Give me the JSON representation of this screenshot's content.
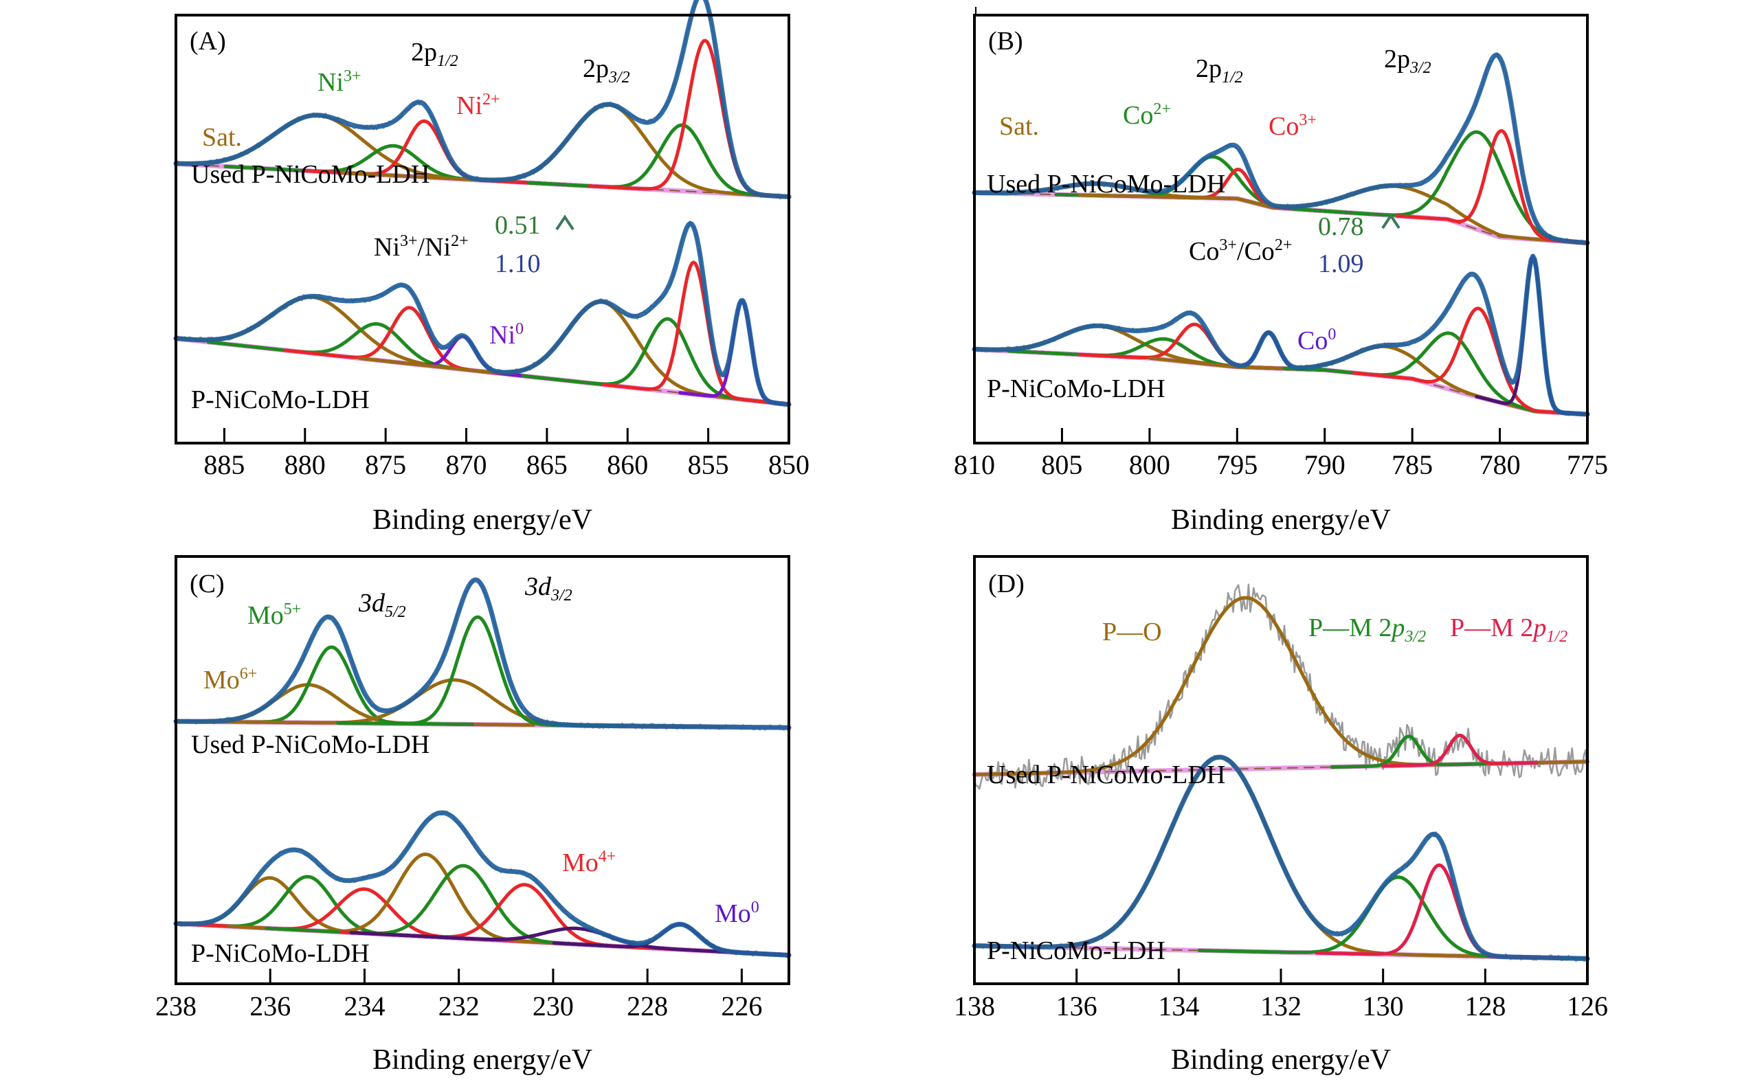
{
  "colors": {
    "raw": "#9a9a9a",
    "envelope": "#1f5f9e",
    "satellite": "#9a6a12",
    "green": "#1f8a1f",
    "red": "#e8262a",
    "purple": "#7a16c8",
    "darkpurple": "#4b1470",
    "background_line": "#e79ce8",
    "crimson": "#e0204a",
    "ratio_new": "#2e7d32",
    "ratio_old": "#2a3f96",
    "arrow": "#3b7a5a"
  },
  "chart_data": [
    {
      "type": "line",
      "panel_label": "(A)",
      "title": "Ni 2p",
      "xlabel": "Binding energy/eV",
      "ylabel": "",
      "xlim": [
        888,
        850
      ],
      "xticks": [
        885,
        880,
        875,
        870,
        865,
        860,
        855,
        850
      ],
      "annotations": {
        "spin_orbit": [
          {
            "text": "2p",
            "sub": "1/2",
            "x": 872.5
          },
          {
            "text": "2p",
            "sub": "3/2",
            "x": 861
          }
        ],
        "species": [
          {
            "text": "Sat.",
            "sup": "",
            "color": "satellite"
          },
          {
            "text": "Ni",
            "sup": "3+",
            "color": "green"
          },
          {
            "text": "Ni",
            "sup": "2+",
            "color": "red"
          },
          {
            "text": "Ni",
            "sup": "0",
            "color": "purple"
          }
        ],
        "ratio": {
          "label": "Ni",
          "label_sup": "3+",
          "label2": "/Ni",
          "label2_sup": "2+",
          "used": "0.51",
          "fresh": "1.10"
        }
      },
      "series": [
        {
          "sample": "Used P-NiCoMo-LDH",
          "offset": 0.62,
          "baseline": [
            [
              888,
              0.05
            ],
            [
              850,
              -0.05
            ]
          ],
          "peaks": [
            {
              "name": "Sat.",
              "color": "satellite",
              "center": 879.2,
              "height": 0.17,
              "fwhm": 6.5
            },
            {
              "name": "Ni3+",
              "color": "green",
              "center": 874.5,
              "height": 0.09,
              "fwhm": 3.5
            },
            {
              "name": "Ni2+",
              "color": "red",
              "center": 872.6,
              "height": 0.17,
              "fwhm": 2.5
            },
            {
              "name": "Sat.",
              "color": "satellite",
              "center": 861.2,
              "height": 0.25,
              "fwhm": 5.5
            },
            {
              "name": "Ni3+",
              "color": "green",
              "center": 856.6,
              "height": 0.2,
              "fwhm": 3.2
            },
            {
              "name": "Ni2+",
              "color": "red",
              "center": 855.2,
              "height": 0.46,
              "fwhm": 2.4
            }
          ]
        },
        {
          "sample": "P-NiCoMo-LDH",
          "offset": 0.0,
          "baseline": [
            [
              888,
              0.14
            ],
            [
              850,
              -0.06
            ]
          ],
          "peaks": [
            {
              "name": "Sat.",
              "color": "satellite",
              "center": 879.5,
              "height": 0.17,
              "fwhm": 6.0
            },
            {
              "name": "Ni3+",
              "color": "green",
              "center": 875.5,
              "height": 0.11,
              "fwhm": 3.5
            },
            {
              "name": "Ni2+",
              "color": "red",
              "center": 873.5,
              "height": 0.17,
              "fwhm": 2.6
            },
            {
              "name": "Ni0",
              "color": "purple",
              "center": 870.2,
              "height": 0.1,
              "fwhm": 1.8
            },
            {
              "name": "Sat.",
              "color": "satellite",
              "center": 861.6,
              "height": 0.25,
              "fwhm": 5.0
            },
            {
              "name": "Ni3+",
              "color": "green",
              "center": 857.5,
              "height": 0.22,
              "fwhm": 3.0
            },
            {
              "name": "Ni2+",
              "color": "red",
              "center": 855.9,
              "height": 0.4,
              "fwhm": 1.9
            },
            {
              "name": "Ni0",
              "color": "purple",
              "center": 852.9,
              "height": 0.3,
              "fwhm": 1.3
            }
          ]
        }
      ]
    },
    {
      "type": "line",
      "panel_label": "(B)",
      "title": "Co 2p",
      "xlabel": "Binding energy/eV",
      "ylabel": "",
      "xlim": [
        810,
        775
      ],
      "xticks": [
        810,
        805,
        800,
        795,
        790,
        785,
        780,
        775
      ],
      "annotations": {
        "spin_orbit": [
          {
            "text": "2p",
            "sub": "1/2",
            "x": 796
          },
          {
            "text": "2p",
            "sub": "3/2",
            "x": 785
          }
        ],
        "species": [
          {
            "text": "Sat.",
            "sup": "",
            "color": "satellite"
          },
          {
            "text": "Co",
            "sup": "2+",
            "color": "green"
          },
          {
            "text": "Co",
            "sup": "3+",
            "color": "red"
          },
          {
            "text": "Co",
            "sup": "0",
            "color": "purple"
          }
        ],
        "ratio": {
          "label": "Co",
          "label_sup": "3+",
          "label2": "/Co",
          "label2_sup": "2+",
          "used": "0.78",
          "fresh": "1.09"
        }
      },
      "series": [
        {
          "sample": "Used P-NiCoMo-LDH",
          "offset": 0.6,
          "baseline": [
            [
              810,
              0.05
            ],
            [
              795,
              0.03
            ],
            [
              793,
              0.0
            ],
            [
              783,
              -0.04
            ],
            [
              780,
              -0.1
            ],
            [
              775,
              -0.12
            ]
          ],
          "peaks": [
            {
              "name": "Sat.",
              "color": "satellite",
              "center": 803.0,
              "height": 0.04,
              "fwhm": 5.0
            },
            {
              "name": "Co2+",
              "color": "green",
              "center": 796.4,
              "height": 0.14,
              "fwhm": 3.0
            },
            {
              "name": "Co3+",
              "color": "red",
              "center": 794.9,
              "height": 0.1,
              "fwhm": 1.6
            },
            {
              "name": "Sat.",
              "color": "satellite",
              "center": 786.0,
              "height": 0.1,
              "fwhm": 6.0
            },
            {
              "name": "Co2+",
              "color": "green",
              "center": 781.2,
              "height": 0.33,
              "fwhm": 3.6
            },
            {
              "name": "Co3+",
              "color": "red",
              "center": 779.9,
              "height": 0.36,
              "fwhm": 2.0
            }
          ]
        },
        {
          "sample": "P-NiCoMo-LDH",
          "offset": 0.0,
          "baseline": [
            [
              810,
              0.12
            ],
            [
              800,
              0.09
            ],
            [
              795,
              0.06
            ],
            [
              790,
              0.05
            ],
            [
              785,
              0.02
            ],
            [
              782,
              -0.03
            ],
            [
              778,
              -0.09
            ],
            [
              775,
              -0.1
            ]
          ],
          "peaks": [
            {
              "name": "Sat.",
              "color": "satellite",
              "center": 802.9,
              "height": 0.1,
              "fwhm": 5.0
            },
            {
              "name": "Co2+",
              "color": "green",
              "center": 799.1,
              "height": 0.07,
              "fwhm": 3.0
            },
            {
              "name": "Co3+",
              "color": "red",
              "center": 797.4,
              "height": 0.13,
              "fwhm": 2.2
            },
            {
              "name": "Co0",
              "color": "darkpurple",
              "center": 793.2,
              "height": 0.12,
              "fwhm": 1.3
            },
            {
              "name": "Sat.",
              "color": "satellite",
              "center": 786.5,
              "height": 0.1,
              "fwhm": 4.5
            },
            {
              "name": "Co2+",
              "color": "green",
              "center": 782.8,
              "height": 0.19,
              "fwhm": 3.2
            },
            {
              "name": "Co3+",
              "color": "red",
              "center": 781.2,
              "height": 0.3,
              "fwhm": 2.4
            },
            {
              "name": "Co0",
              "color": "darkpurple",
              "center": 778.1,
              "height": 0.52,
              "fwhm": 1.1
            }
          ]
        }
      ]
    },
    {
      "type": "line",
      "panel_label": "(C)",
      "title": "Mo 3d",
      "xlabel": "Binding energy/eV",
      "ylabel": "",
      "xlim": [
        238,
        225
      ],
      "xticks": [
        238,
        236,
        234,
        232,
        230,
        228,
        226
      ],
      "annotations": {
        "spin_orbit": [
          {
            "text": "3d",
            "sub": "5/2",
            "x": 233.8
          },
          {
            "text": "3d",
            "sub": "3/2",
            "x": 231
          }
        ],
        "species": [
          {
            "text": "Mo",
            "sup": "6+",
            "color": "satellite"
          },
          {
            "text": "Mo",
            "sup": "5+",
            "color": "green"
          },
          {
            "text": "Mo",
            "sup": "4+",
            "color": "red"
          },
          {
            "text": "Mo",
            "sup": "0",
            "color": "purple"
          }
        ]
      },
      "series": [
        {
          "sample": "Used P-NiCoMo-LDH",
          "offset": 0.7,
          "baseline": [
            [
              238,
              0.0
            ],
            [
              225,
              -0.02
            ]
          ],
          "peaks": [
            {
              "name": "Mo6+",
              "color": "satellite",
              "center": 235.2,
              "height": 0.12,
              "fwhm": 1.6
            },
            {
              "name": "Mo5+",
              "color": "green",
              "center": 234.7,
              "height": 0.24,
              "fwhm": 1.0
            },
            {
              "name": "Mo6+",
              "color": "satellite",
              "center": 232.1,
              "height": 0.14,
              "fwhm": 1.9
            },
            {
              "name": "Mo5+",
              "color": "green",
              "center": 231.6,
              "height": 0.34,
              "fwhm": 1.0
            }
          ]
        },
        {
          "sample": "P-NiCoMo-LDH",
          "offset": 0.0,
          "baseline": [
            [
              238,
              0.06
            ],
            [
              225,
              -0.04
            ]
          ],
          "peaks": [
            {
              "name": "Mo6+",
              "color": "satellite",
              "center": 236.0,
              "height": 0.16,
              "fwhm": 1.3
            },
            {
              "name": "Mo5+",
              "color": "green",
              "center": 235.2,
              "height": 0.17,
              "fwhm": 1.2
            },
            {
              "name": "Mo4+",
              "color": "red",
              "center": 234.0,
              "height": 0.14,
              "fwhm": 1.3
            },
            {
              "name": "Mo6+",
              "color": "satellite",
              "center": 232.7,
              "height": 0.26,
              "fwhm": 1.4
            },
            {
              "name": "Mo5+",
              "color": "green",
              "center": 231.9,
              "height": 0.23,
              "fwhm": 1.4
            },
            {
              "name": "Mo4+",
              "color": "red",
              "center": 230.6,
              "height": 0.18,
              "fwhm": 1.3
            },
            {
              "name": "Mo0",
              "color": "darkpurple",
              "center": 229.5,
              "height": 0.05,
              "fwhm": 1.6
            },
            {
              "name": "Mo0",
              "color": "darkpurple",
              "center": 227.3,
              "height": 0.08,
              "fwhm": 0.9
            }
          ]
        }
      ]
    },
    {
      "type": "line",
      "panel_label": "(D)",
      "title": "P 2p",
      "xlabel": "Binding energy/eV",
      "ylabel": "",
      "xlim": [
        138,
        126
      ],
      "xticks": [
        138,
        136,
        134,
        132,
        130,
        128,
        126
      ],
      "annotations": {
        "species": [
          {
            "text": "P—O",
            "color": "satellite"
          },
          {
            "text": "P—M 2",
            "ital": "p",
            "sub": "3/2",
            "color": "green"
          },
          {
            "text": "P—M 2",
            "ital": "p",
            "sub": "1/2",
            "color": "crimson"
          }
        ]
      },
      "series": [
        {
          "sample": "Used P-NiCoMo-LDH",
          "offset": 0.55,
          "noisy": true,
          "baseline": [
            [
              138,
              0.0
            ],
            [
              126,
              0.04
            ]
          ],
          "peaks": [
            {
              "name": "P—O",
              "color": "satellite",
              "center": 132.7,
              "height": 0.53,
              "fwhm": 2.4
            },
            {
              "name": "P—M 2p3/2",
              "color": "green",
              "center": 129.5,
              "height": 0.09,
              "fwhm": 0.5
            },
            {
              "name": "P—M 2p1/2",
              "color": "crimson",
              "center": 128.5,
              "height": 0.09,
              "fwhm": 0.5
            }
          ]
        },
        {
          "sample": "P-NiCoMo-LDH",
          "offset": 0.0,
          "baseline": [
            [
              138,
              0.02
            ],
            [
              126,
              -0.02
            ]
          ],
          "peaks": [
            {
              "name": "P—O",
              "color": "satellite",
              "center": 133.2,
              "height": 0.6,
              "fwhm": 2.3
            },
            {
              "name": "P—M 2p3/2",
              "color": "green",
              "center": 129.7,
              "height": 0.24,
              "fwhm": 1.3
            },
            {
              "name": "P—M 2p1/2",
              "color": "crimson",
              "center": 128.9,
              "height": 0.28,
              "fwhm": 0.8
            }
          ]
        }
      ]
    }
  ]
}
